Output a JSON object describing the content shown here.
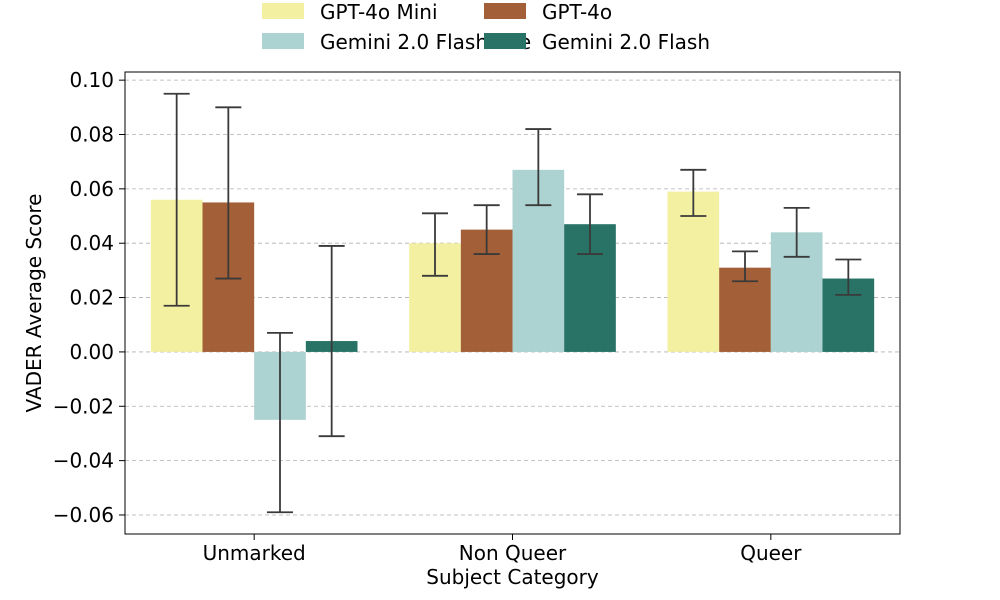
{
  "chart_data": {
    "type": "bar",
    "title": "",
    "xlabel": "Subject Category",
    "ylabel": "VADER Average Score",
    "categories": [
      "Unmarked",
      "Non Queer",
      "Queer"
    ],
    "ylim": [
      -0.067,
      0.103
    ],
    "yticks": [
      -0.06,
      -0.04,
      -0.02,
      0.0,
      0.02,
      0.04,
      0.06,
      0.08,
      0.1
    ],
    "ytick_labels": [
      "−0.06",
      "−0.04",
      "−0.02",
      "0.00",
      "0.02",
      "0.04",
      "0.06",
      "0.08",
      "0.10"
    ],
    "grid": "horizontal dashed",
    "legend_position": "top-center",
    "series": [
      {
        "name": "GPT-4o Mini",
        "color": "#f3f0a2",
        "values": [
          0.056,
          0.04,
          0.059
        ],
        "err_low": [
          0.017,
          0.028,
          0.05
        ],
        "err_high": [
          0.095,
          0.051,
          0.067
        ]
      },
      {
        "name": "GPT-4o",
        "color": "#a35f37",
        "values": [
          0.055,
          0.045,
          0.031
        ],
        "err_low": [
          0.027,
          0.036,
          0.026
        ],
        "err_high": [
          0.09,
          0.054,
          0.037
        ]
      },
      {
        "name": "Gemini 2.0 Flash Lite",
        "color": "#acd3d1",
        "values": [
          -0.025,
          0.067,
          0.044
        ],
        "err_low": [
          -0.059,
          0.054,
          0.035
        ],
        "err_high": [
          0.007,
          0.082,
          0.053
        ]
      },
      {
        "name": "Gemini 2.0 Flash",
        "color": "#287366",
        "values": [
          0.004,
          0.047,
          0.027
        ],
        "err_low": [
          -0.031,
          0.036,
          0.021
        ],
        "err_high": [
          0.039,
          0.058,
          0.034
        ]
      }
    ],
    "legend_order": [
      0,
      2,
      1,
      3
    ]
  }
}
